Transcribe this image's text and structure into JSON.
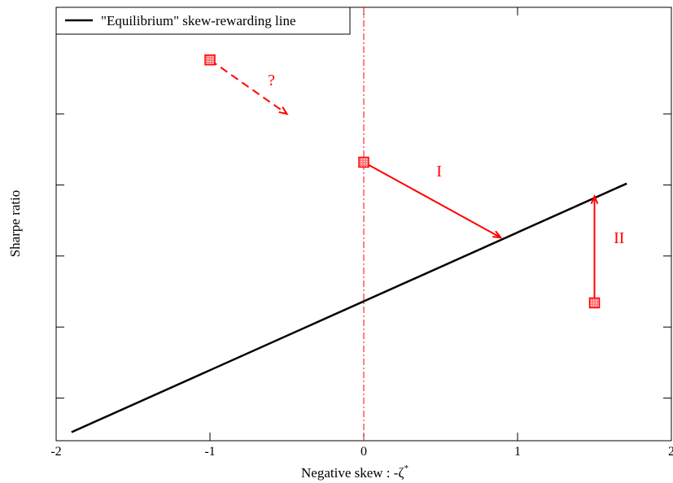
{
  "chart_data": {
    "type": "line",
    "title": "",
    "xlabel": "Negative skew :  -ζ",
    "xlabel_superscript": "*",
    "ylabel": "Sharpe ratio",
    "xlim": [
      -2,
      2
    ],
    "ylim": [
      -1.3,
      1.75
    ],
    "x_ticks": [
      -2,
      -1,
      0,
      1,
      2
    ],
    "x_tick_labels": [
      "-2",
      "-1",
      "0",
      "1",
      "2"
    ],
    "y_ticks": [
      -1,
      -0.5,
      0,
      0.5,
      1
    ],
    "y_tick_labels": [
      "",
      "",
      "",
      "",
      ""
    ],
    "grid": false,
    "legend": {
      "placement": "top-left",
      "entries": [
        "\"Equilibrium\" skew-rewarding line"
      ]
    },
    "series": [
      {
        "name": "\"Equilibrium\" skew-rewarding line",
        "color": "#000000",
        "x": [
          -1.9,
          1.71
        ],
        "y": [
          -1.24,
          0.51
        ]
      }
    ],
    "reference_line": {
      "x": 0,
      "color": "#ff0000",
      "style": "dash-dot"
    },
    "markers": [
      {
        "x": -1.0,
        "y": 1.38,
        "color": "#ff0000"
      },
      {
        "x": 0.0,
        "y": 0.66,
        "color": "#ff0000"
      },
      {
        "x": 1.5,
        "y": -0.33,
        "color": "#ff0000"
      }
    ],
    "arrows": [
      {
        "from": [
          -1.0,
          1.38
        ],
        "to": [
          -0.5,
          1.0
        ],
        "style": "dashed",
        "label": "?",
        "label_at": [
          -0.6,
          1.2
        ],
        "color": "#ff0000"
      },
      {
        "from": [
          0.0,
          0.66
        ],
        "to": [
          0.89,
          0.13
        ],
        "style": "solid",
        "label": "I",
        "label_at": [
          0.49,
          0.56
        ],
        "color": "#ff0000"
      },
      {
        "from": [
          1.5,
          -0.33
        ],
        "to": [
          1.5,
          0.42
        ],
        "style": "solid",
        "label": "II",
        "label_at": [
          1.66,
          0.09
        ],
        "color": "#ff0000"
      }
    ]
  }
}
